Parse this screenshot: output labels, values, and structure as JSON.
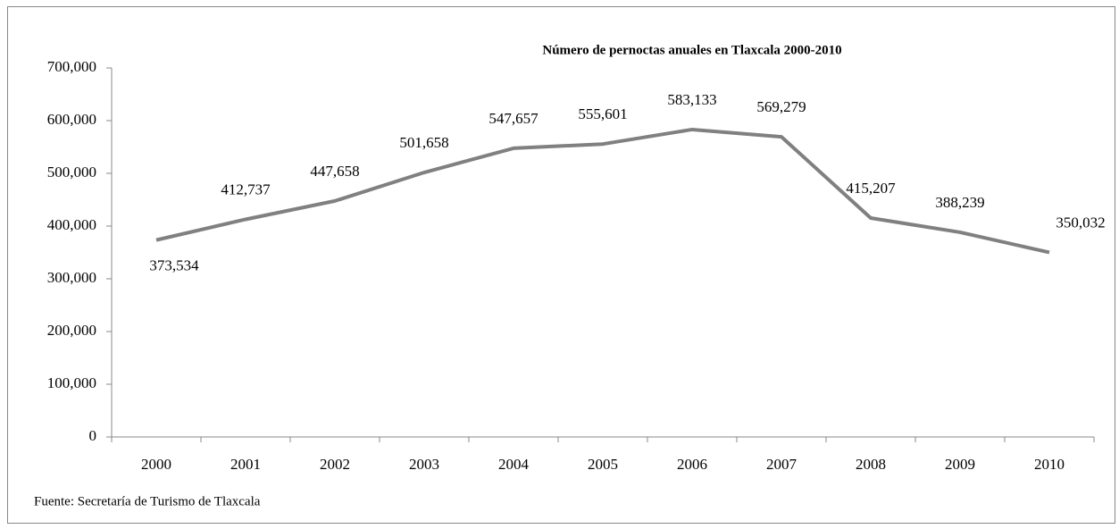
{
  "chart_data": {
    "type": "line",
    "title": "Número de pernoctas anuales en Tlaxcala 2000-2010",
    "source": "Fuente: Secretaría de Turismo de Tlaxcala",
    "categories": [
      "2000",
      "2001",
      "2002",
      "2003",
      "2004",
      "2005",
      "2006",
      "2007",
      "2008",
      "2009",
      "2010"
    ],
    "series": [
      {
        "name": "Pernoctas",
        "color": "#808080",
        "values": [
          373534,
          412737,
          447658,
          501658,
          547657,
          555601,
          583133,
          569279,
          415207,
          388239,
          350032
        ],
        "value_labels": [
          "373,534",
          "412,737",
          "447,658",
          "501,658",
          "547,657",
          "555,601",
          "583,133",
          "569,279",
          "415,207",
          "388,239",
          "350,032"
        ]
      }
    ],
    "ylim": [
      0,
      700000
    ],
    "yticks": [
      {
        "value": 0,
        "label": "0"
      },
      {
        "value": 100000,
        "label": "100,000"
      },
      {
        "value": 200000,
        "label": "200,000"
      },
      {
        "value": 300000,
        "label": "300,000"
      },
      {
        "value": 400000,
        "label": "400,000"
      },
      {
        "value": 500000,
        "label": "500,000"
      },
      {
        "value": 600000,
        "label": "600,000"
      },
      {
        "value": 700000,
        "label": "700,000"
      }
    ],
    "grid": false
  }
}
